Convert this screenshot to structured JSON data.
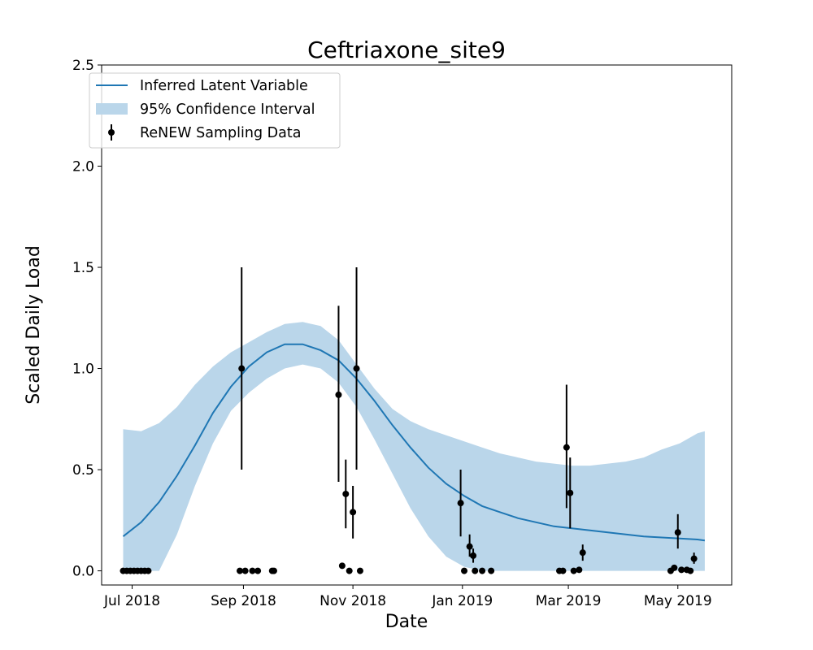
{
  "chart_data": {
    "type": "line",
    "title": "Ceftriaxone_site9",
    "xlabel": "Date",
    "ylabel": "Scaled Daily Load",
    "xlim": [
      "2018-06-14",
      "2019-05-31"
    ],
    "ylim": [
      -0.07,
      2.5
    ],
    "xticks": [
      {
        "date": "2018-07-01",
        "label": "Jul 2018"
      },
      {
        "date": "2018-09-01",
        "label": "Sep 2018"
      },
      {
        "date": "2018-11-01",
        "label": "Nov 2018"
      },
      {
        "date": "2019-01-01",
        "label": "Jan 2019"
      },
      {
        "date": "2019-03-01",
        "label": "Mar 2019"
      },
      {
        "date": "2019-05-01",
        "label": "May 2019"
      }
    ],
    "yticks": [
      0.0,
      0.5,
      1.0,
      1.5,
      2.0,
      2.5
    ],
    "ytick_labels": [
      "0.0",
      "0.5",
      "1.0",
      "1.5",
      "2.0",
      "2.5"
    ],
    "grid": false,
    "legend_position": "top-left",
    "colors": {
      "line": "#1f77b4",
      "band": "#bad6ea",
      "points": "#000000"
    },
    "series": [
      {
        "name": "Inferred Latent Variable",
        "kind": "line",
        "x": [
          "2018-06-26",
          "2018-07-06",
          "2018-07-16",
          "2018-07-26",
          "2018-08-05",
          "2018-08-15",
          "2018-08-25",
          "2018-09-04",
          "2018-09-14",
          "2018-09-24",
          "2018-10-04",
          "2018-10-14",
          "2018-10-24",
          "2018-11-03",
          "2018-11-13",
          "2018-11-23",
          "2018-12-03",
          "2018-12-13",
          "2018-12-23",
          "2019-01-02",
          "2019-01-12",
          "2019-01-22",
          "2019-02-01",
          "2019-02-11",
          "2019-02-21",
          "2019-03-03",
          "2019-03-13",
          "2019-03-23",
          "2019-04-02",
          "2019-04-12",
          "2019-04-22",
          "2019-05-02",
          "2019-05-12",
          "2019-05-16"
        ],
        "y": [
          0.17,
          0.24,
          0.34,
          0.47,
          0.62,
          0.78,
          0.91,
          1.01,
          1.08,
          1.12,
          1.12,
          1.09,
          1.04,
          0.95,
          0.84,
          0.72,
          0.61,
          0.51,
          0.43,
          0.37,
          0.32,
          0.29,
          0.26,
          0.24,
          0.22,
          0.21,
          0.2,
          0.19,
          0.18,
          0.17,
          0.165,
          0.16,
          0.155,
          0.15
        ]
      },
      {
        "name": "95% Confidence Interval",
        "kind": "band",
        "x": [
          "2018-06-26",
          "2018-07-06",
          "2018-07-16",
          "2018-07-26",
          "2018-08-05",
          "2018-08-15",
          "2018-08-25",
          "2018-09-04",
          "2018-09-14",
          "2018-09-24",
          "2018-10-04",
          "2018-10-14",
          "2018-10-24",
          "2018-11-03",
          "2018-11-13",
          "2018-11-23",
          "2018-12-03",
          "2018-12-13",
          "2018-12-23",
          "2019-01-02",
          "2019-01-12",
          "2019-01-22",
          "2019-02-01",
          "2019-02-11",
          "2019-02-21",
          "2019-03-03",
          "2019-03-13",
          "2019-03-23",
          "2019-04-02",
          "2019-04-12",
          "2019-04-22",
          "2019-05-02",
          "2019-05-12",
          "2019-05-16"
        ],
        "lower": [
          0.0,
          0.0,
          0.0,
          0.18,
          0.42,
          0.63,
          0.79,
          0.88,
          0.95,
          1.0,
          1.02,
          1.0,
          0.93,
          0.81,
          0.65,
          0.48,
          0.31,
          0.17,
          0.07,
          0.02,
          0.0,
          0.0,
          0.0,
          0.0,
          0.0,
          0.0,
          0.0,
          0.0,
          0.0,
          0.0,
          0.0,
          0.0,
          0.0,
          0.0
        ],
        "upper": [
          0.7,
          0.69,
          0.73,
          0.81,
          0.92,
          1.01,
          1.08,
          1.13,
          1.18,
          1.22,
          1.23,
          1.21,
          1.14,
          1.02,
          0.9,
          0.8,
          0.74,
          0.7,
          0.67,
          0.64,
          0.61,
          0.58,
          0.56,
          0.54,
          0.53,
          0.52,
          0.52,
          0.53,
          0.54,
          0.56,
          0.6,
          0.63,
          0.68,
          0.69
        ]
      },
      {
        "name": "ReNEW Sampling Data",
        "kind": "errorbar",
        "points": [
          {
            "x": "2018-06-26",
            "y": 0.0
          },
          {
            "x": "2018-06-28",
            "y": 0.0
          },
          {
            "x": "2018-06-30",
            "y": 0.0
          },
          {
            "x": "2018-07-02",
            "y": 0.0
          },
          {
            "x": "2018-07-04",
            "y": 0.0
          },
          {
            "x": "2018-07-06",
            "y": 0.0
          },
          {
            "x": "2018-07-08",
            "y": 0.0
          },
          {
            "x": "2018-07-10",
            "y": 0.0
          },
          {
            "x": "2018-08-30",
            "y": 0.0
          },
          {
            "x": "2018-08-31",
            "y": 1.0,
            "yerr_low": 0.5,
            "yerr_high": 1.5
          },
          {
            "x": "2018-09-02",
            "y": 0.0
          },
          {
            "x": "2018-09-06",
            "y": 0.0
          },
          {
            "x": "2018-09-09",
            "y": 0.0
          },
          {
            "x": "2018-09-17",
            "y": 0.0
          },
          {
            "x": "2018-09-18",
            "y": 0.0
          },
          {
            "x": "2018-10-24",
            "y": 0.87,
            "yerr_low": 0.44,
            "yerr_high": 1.31
          },
          {
            "x": "2018-10-26",
            "y": 0.025
          },
          {
            "x": "2018-10-28",
            "y": 0.38,
            "yerr_low": 0.21,
            "yerr_high": 0.55
          },
          {
            "x": "2018-10-30",
            "y": 0.0
          },
          {
            "x": "2018-11-01",
            "y": 0.29,
            "yerr_low": 0.16,
            "yerr_high": 0.42
          },
          {
            "x": "2018-11-03",
            "y": 1.0,
            "yerr_low": 0.5,
            "yerr_high": 1.5
          },
          {
            "x": "2018-11-05",
            "y": 0.0
          },
          {
            "x": "2018-12-31",
            "y": 0.335,
            "yerr_low": 0.17,
            "yerr_high": 0.5
          },
          {
            "x": "2019-01-02",
            "y": 0.0
          },
          {
            "x": "2019-01-05",
            "y": 0.12,
            "yerr_low": 0.07,
            "yerr_high": 0.18
          },
          {
            "x": "2019-01-07",
            "y": 0.075,
            "yerr_low": 0.04,
            "yerr_high": 0.11
          },
          {
            "x": "2019-01-08",
            "y": 0.0
          },
          {
            "x": "2019-01-12",
            "y": 0.0
          },
          {
            "x": "2019-01-17",
            "y": 0.0
          },
          {
            "x": "2019-02-24",
            "y": 0.0
          },
          {
            "x": "2019-02-26",
            "y": 0.0
          },
          {
            "x": "2019-02-28",
            "y": 0.61,
            "yerr_low": 0.31,
            "yerr_high": 0.92
          },
          {
            "x": "2019-03-02",
            "y": 0.385,
            "yerr_low": 0.21,
            "yerr_high": 0.56
          },
          {
            "x": "2019-03-04",
            "y": 0.0
          },
          {
            "x": "2019-03-07",
            "y": 0.005
          },
          {
            "x": "2019-03-09",
            "y": 0.09,
            "yerr_low": 0.05,
            "yerr_high": 0.13
          },
          {
            "x": "2019-04-27",
            "y": 0.0
          },
          {
            "x": "2019-04-29",
            "y": 0.015
          },
          {
            "x": "2019-05-01",
            "y": 0.19,
            "yerr_low": 0.11,
            "yerr_high": 0.28
          },
          {
            "x": "2019-05-03",
            "y": 0.005
          },
          {
            "x": "2019-05-06",
            "y": 0.005
          },
          {
            "x": "2019-05-08",
            "y": 0.0
          },
          {
            "x": "2019-05-10",
            "y": 0.06,
            "yerr_low": 0.035,
            "yerr_high": 0.09
          }
        ]
      }
    ]
  }
}
